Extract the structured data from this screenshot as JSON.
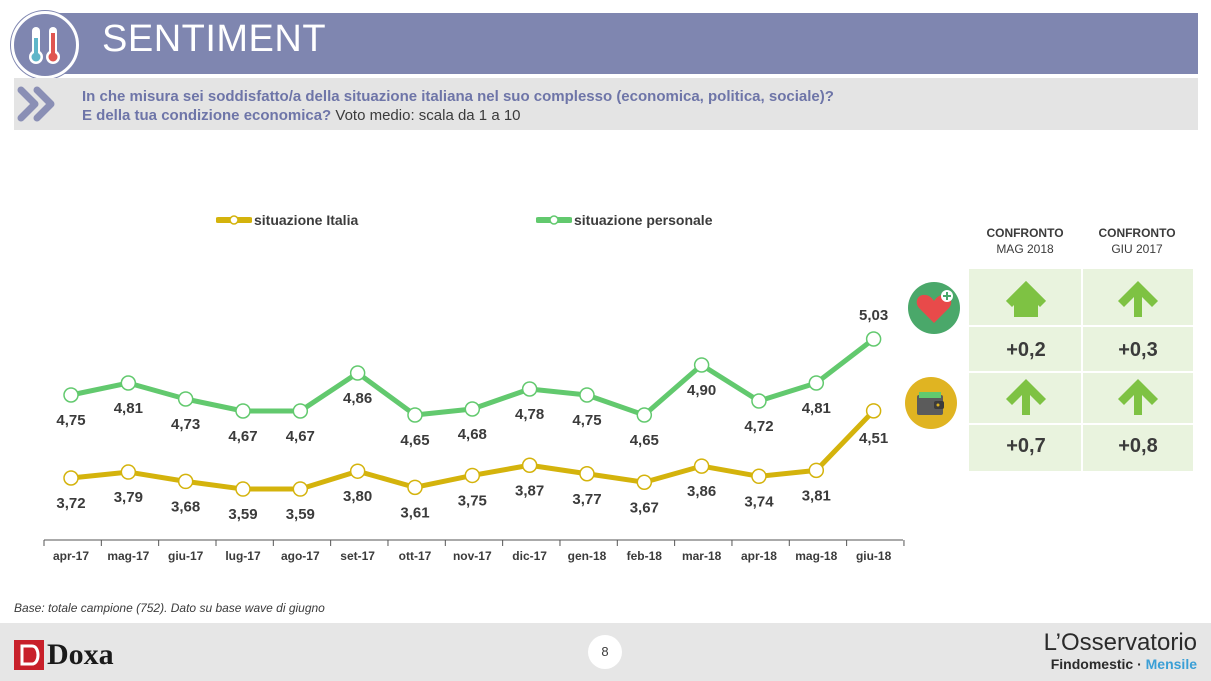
{
  "header": {
    "title": "SENTIMENT"
  },
  "question": {
    "line1": "In che misura sei soddisfatto/a della situazione italiana nel suo complesso (economica, politica, sociale)?",
    "line2_bold": "E della tua condizione economica?",
    "line2_rest": " Voto medio: scala da 1 a 10"
  },
  "legend": {
    "italia": "situazione Italia",
    "personale": "situazione personale"
  },
  "colors": {
    "italia": "#d4b30c",
    "personale": "#62c96e",
    "header": "#7f86b0"
  },
  "chart_data": {
    "type": "line",
    "categories": [
      "apr-17",
      "mag-17",
      "giu-17",
      "lug-17",
      "ago-17",
      "set-17",
      "ott-17",
      "nov-17",
      "dic-17",
      "gen-18",
      "feb-18",
      "mar-18",
      "apr-18",
      "mag-18",
      "giu-18"
    ],
    "series": [
      {
        "name": "situazione personale",
        "values": [
          4.75,
          4.81,
          4.73,
          4.67,
          4.67,
          4.86,
          4.65,
          4.68,
          4.78,
          4.75,
          4.65,
          4.9,
          4.72,
          4.81,
          5.03
        ],
        "labels": [
          "4,75",
          "4,81",
          "4,73",
          "4,67",
          "4,67",
          "4,86",
          "4,65",
          "4,68",
          "4,78",
          "4,75",
          "4,65",
          "4,90",
          "4,72",
          "4,81",
          "5,03"
        ]
      },
      {
        "name": "situazione Italia",
        "values": [
          3.72,
          3.79,
          3.68,
          3.59,
          3.59,
          3.8,
          3.61,
          3.75,
          3.87,
          3.77,
          3.67,
          3.86,
          3.74,
          3.81,
          4.51
        ],
        "labels": [
          "3,72",
          "3,79",
          "3,68",
          "3,59",
          "3,59",
          "3,80",
          "3,61",
          "3,75",
          "3,87",
          "3,77",
          "3,67",
          "3,86",
          "3,74",
          "3,81",
          "4,51"
        ]
      }
    ],
    "grid": false
  },
  "comparison": {
    "col1": {
      "title": "CONFRONTO",
      "sub": "MAG 2018"
    },
    "col2": {
      "title": "CONFRONTO",
      "sub": "GIU 2017"
    },
    "rows": [
      {
        "icon": "heart-icon",
        "v1": "+0,2",
        "v2": "+0,3"
      },
      {
        "icon": "wallet-icon",
        "v1": "+0,7",
        "v2": "+0,8"
      }
    ]
  },
  "footer": {
    "note": "Base: totale campione (752). Dato su base wave di giugno",
    "page": "8",
    "brand": "Doxa",
    "osservatorio": "L’Osservatorio",
    "findomestic": "Findomestic · ",
    "mensile": "Mensile"
  }
}
